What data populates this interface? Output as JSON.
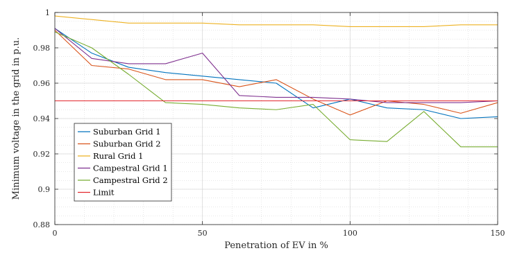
{
  "chart_data": {
    "type": "line",
    "xlabel": "Penetration of EV in %",
    "ylabel": "Minimum voltage in the grid in p.u.",
    "xlim": [
      0,
      150
    ],
    "ylim": [
      0.88,
      1.0
    ],
    "xticks": [
      "0",
      "50",
      "100",
      "150"
    ],
    "yticks": [
      "0.88",
      "0.9",
      "0.92",
      "0.94",
      "0.96",
      "0.98",
      "1"
    ],
    "grid": true,
    "minor_grid": true,
    "legend_position": "bottom-left",
    "x": [
      0,
      12.5,
      25,
      37.5,
      50,
      62.5,
      75,
      87.5,
      100,
      112.5,
      125,
      137.5,
      150
    ],
    "series": [
      {
        "name": "Suburban Grid 1",
        "color": "#0072BD",
        "values": [
          0.991,
          0.977,
          0.969,
          0.966,
          0.964,
          0.962,
          0.96,
          0.946,
          0.951,
          0.946,
          0.945,
          0.94,
          0.941
        ]
      },
      {
        "name": "Suburban Grid 2",
        "color": "#D95319",
        "values": [
          0.99,
          0.97,
          0.968,
          0.962,
          0.962,
          0.958,
          0.962,
          0.951,
          0.942,
          0.95,
          0.948,
          0.943,
          0.949
        ]
      },
      {
        "name": "Rural Grid 1",
        "color": "#EDB120",
        "values": [
          0.998,
          0.996,
          0.994,
          0.994,
          0.994,
          0.993,
          0.993,
          0.993,
          0.992,
          0.992,
          0.992,
          0.993,
          0.993
        ]
      },
      {
        "name": "Campestral Grid 1",
        "color": "#7E2F8E",
        "values": [
          0.991,
          0.974,
          0.971,
          0.971,
          0.977,
          0.953,
          0.952,
          0.952,
          0.951,
          0.949,
          0.949,
          0.949,
          0.95
        ]
      },
      {
        "name": "Campestral Grid 2",
        "color": "#77AC30",
        "values": [
          0.989,
          0.98,
          0.965,
          0.949,
          0.948,
          0.946,
          0.945,
          0.948,
          0.928,
          0.927,
          0.944,
          0.924,
          0.924
        ]
      },
      {
        "name": "Limit",
        "color": "#E3262C",
        "values": [
          0.95,
          0.95,
          0.95,
          0.95,
          0.95,
          0.95,
          0.95,
          0.95,
          0.95,
          0.95,
          0.95,
          0.95,
          0.95
        ]
      }
    ]
  }
}
